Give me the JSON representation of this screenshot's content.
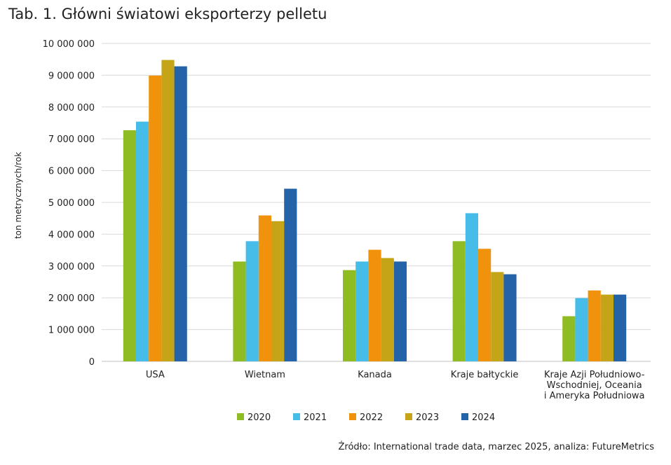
{
  "title": "Tab. 1. Główni światowi eksporterzy pelletu",
  "source": "Źródło: International trade data, marzec 2025, analiza: FutureMetrics",
  "chart_data": {
    "type": "bar",
    "categories": [
      [
        "USA"
      ],
      [
        "Wietnam"
      ],
      [
        "Kanada"
      ],
      [
        "Kraje bałtyckie"
      ],
      [
        "Kraje Azji Południowo-",
        "Wschodniej, Oceania",
        "i Ameryka Południowa"
      ]
    ],
    "series": [
      {
        "name": "2020",
        "color": "#8fbc22",
        "values": [
          7270000,
          3140000,
          2870000,
          3780000,
          1420000
        ]
      },
      {
        "name": "2021",
        "color": "#45bde8",
        "values": [
          7540000,
          3780000,
          3140000,
          4660000,
          1990000
        ]
      },
      {
        "name": "2022",
        "color": "#f0920b",
        "values": [
          8990000,
          4590000,
          3510000,
          3540000,
          2230000
        ]
      },
      {
        "name": "2023",
        "color": "#c5a417",
        "values": [
          9480000,
          4410000,
          3250000,
          2810000,
          2100000
        ]
      },
      {
        "name": "2024",
        "color": "#2563a8",
        "values": [
          9280000,
          5430000,
          3140000,
          2740000,
          2100000
        ]
      }
    ],
    "ylabel": "ton metrycznych/rok",
    "xlabel": "",
    "ylim": [
      0,
      10000000
    ],
    "yticks": [
      0,
      1000000,
      2000000,
      3000000,
      4000000,
      5000000,
      6000000,
      7000000,
      8000000,
      9000000,
      10000000
    ],
    "ytick_labels": [
      "0",
      "1 000 000",
      "2 000 000",
      "3 000 000",
      "4 000 000",
      "5 000 000",
      "6 000 000",
      "7 000 000",
      "8 000 000",
      "9 000 000",
      "10 000 000"
    ],
    "grid": true,
    "legend_position": "bottom"
  }
}
